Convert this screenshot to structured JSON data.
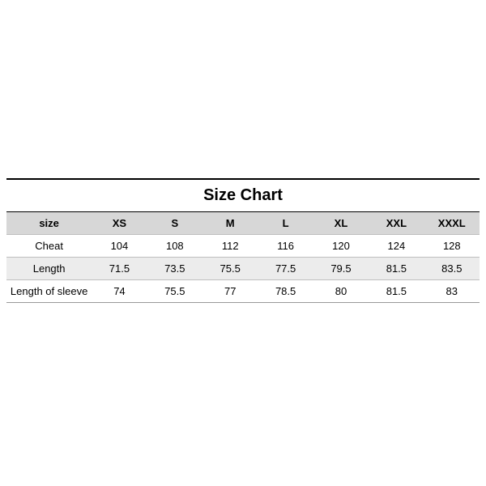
{
  "sizeChart": {
    "type": "table",
    "title": "Size Chart",
    "title_fontsize": 20,
    "title_fontweight": 700,
    "label_header": "size",
    "columns": [
      "XS",
      "S",
      "M",
      "L",
      "XL",
      "XXL",
      "XXXL"
    ],
    "rows": [
      {
        "label": "Cheat",
        "values": [
          "104",
          "108",
          "112",
          "116",
          "120",
          "124",
          "128"
        ]
      },
      {
        "label": "Length",
        "values": [
          "71.5",
          "73.5",
          "75.5",
          "77.5",
          "79.5",
          "81.5",
          "83.5"
        ]
      },
      {
        "label": "Length of sleeve",
        "values": [
          "74",
          "75.5",
          "77",
          "78.5",
          "80",
          "81.5",
          "83"
        ]
      }
    ],
    "colors": {
      "title_border_top": "#000000",
      "title_border_bottom": "#000000",
      "header_bg": "#d7d7d7",
      "row_bg": "#ffffff",
      "row_alt_bg": "#ececec",
      "grid_color": "#bfbfbf",
      "text_color": "#000000",
      "page_bg": "#ffffff"
    },
    "column_widths_pct": {
      "label": 18,
      "size": 11.7
    },
    "cell_fontsize": 13,
    "header_fontweight": 700,
    "n_size_cols": 7
  }
}
